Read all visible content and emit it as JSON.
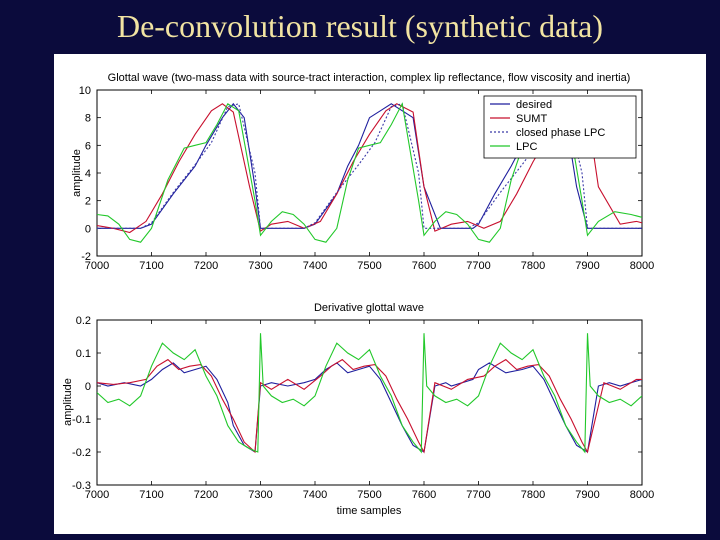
{
  "slide": {
    "title": "De-convolution result (synthetic data)"
  },
  "chart_data": [
    {
      "type": "line",
      "title": "Glottal wave (two-mass data with source-tract interaction, complex lip reflectance, flow viscosity and inertia)",
      "xlabel": "",
      "ylabel": "amplitude",
      "xlim": [
        7000,
        8000
      ],
      "ylim": [
        -2,
        10
      ],
      "x_ticks": [
        "7000",
        "7100",
        "7200",
        "7300",
        "7400",
        "7500",
        "7600",
        "7700",
        "7800",
        "7900",
        "8000"
      ],
      "y_ticks": [
        "10",
        "8",
        "6",
        "4",
        "2",
        "0",
        "-2"
      ],
      "legend": {
        "position": "top-right",
        "entries": [
          "desired",
          "SUMT",
          "closed phase LPC",
          "LPC"
        ]
      },
      "series": [
        {
          "name": "desired",
          "color": "#1f1f9e",
          "dash": "none",
          "x": [
            7000,
            7040,
            7060,
            7080,
            7100,
            7140,
            7180,
            7200,
            7230,
            7250,
            7270,
            7290,
            7300,
            7330,
            7360,
            7380,
            7400,
            7440,
            7460,
            7480,
            7500,
            7540,
            7580,
            7600,
            7630,
            7650,
            7670,
            7690,
            7700,
            7730,
            7760,
            7780,
            7800,
            7840,
            7860,
            7880,
            7900,
            7940,
            7980,
            8000
          ],
          "y": [
            0,
            0,
            0,
            0,
            0.3,
            2.5,
            4.5,
            6,
            8,
            9,
            8,
            3,
            0,
            0,
            0,
            0,
            0.3,
            2.5,
            4.5,
            6,
            8,
            9,
            8,
            3,
            0,
            0,
            0,
            0,
            0.3,
            2.5,
            4.5,
            6,
            8,
            9,
            8,
            3,
            0,
            0,
            0,
            0
          ]
        },
        {
          "name": "SUMT",
          "color": "#c8102e",
          "dash": "none",
          "x": [
            7000,
            7030,
            7060,
            7090,
            7120,
            7150,
            7180,
            7210,
            7230,
            7250,
            7280,
            7300,
            7320,
            7350,
            7380,
            7410,
            7440,
            7470,
            7500,
            7530,
            7550,
            7580,
            7600,
            7620,
            7650,
            7680,
            7710,
            7740,
            7770,
            7800,
            7830,
            7850,
            7880,
            7900,
            7920,
            7960,
            7990,
            8000
          ],
          "y": [
            0.2,
            0,
            -0.3,
            0.5,
            2.5,
            4.8,
            6.8,
            8.5,
            9,
            8.4,
            3,
            -0.2,
            0.3,
            0.5,
            0,
            0.5,
            2.5,
            4.8,
            6.8,
            8.5,
            9,
            8.4,
            3,
            -0.2,
            0.3,
            0.5,
            0,
            0.5,
            2.5,
            4.8,
            6.8,
            8.5,
            9,
            8.4,
            3,
            0.3,
            0.5,
            0.4
          ]
        },
        {
          "name": "closed phase LPC",
          "color": "#3a3aa8",
          "dash": "2,2",
          "x": [
            7000,
            7050,
            7080,
            7100,
            7140,
            7180,
            7210,
            7240,
            7260,
            7290,
            7300,
            7350,
            7380,
            7400,
            7440,
            7480,
            7510,
            7540,
            7560,
            7590,
            7600,
            7650,
            7680,
            7700,
            7740,
            7780,
            7810,
            7840,
            7860,
            7890,
            7900,
            7950,
            8000
          ],
          "y": [
            0,
            0,
            0,
            0.4,
            2.6,
            4.6,
            6.2,
            8.8,
            9,
            4,
            0,
            0,
            0,
            0.4,
            2.6,
            4.6,
            6.2,
            8.8,
            9,
            4,
            0,
            0,
            0,
            0.4,
            2.6,
            4.6,
            6.2,
            8.8,
            9,
            4,
            0,
            0,
            0
          ]
        },
        {
          "name": "LPC",
          "color": "#22c82a",
          "dash": "none",
          "x": [
            7000,
            7020,
            7040,
            7060,
            7080,
            7100,
            7130,
            7160,
            7180,
            7200,
            7220,
            7240,
            7260,
            7290,
            7300,
            7320,
            7340,
            7360,
            7380,
            7400,
            7420,
            7440,
            7460,
            7480,
            7500,
            7520,
            7540,
            7560,
            7590,
            7600,
            7620,
            7640,
            7660,
            7680,
            7700,
            7720,
            7740,
            7760,
            7780,
            7800,
            7820,
            7840,
            7860,
            7890,
            7900,
            7920,
            7950,
            7980,
            8000
          ],
          "y": [
            1,
            0.9,
            0.3,
            -0.8,
            -1,
            0,
            3.5,
            5.8,
            6,
            6.2,
            7.5,
            9,
            8.5,
            2,
            -0.5,
            0.5,
            1.2,
            1,
            0.3,
            -0.8,
            -1,
            0,
            3.5,
            5.8,
            6,
            6.2,
            7.5,
            9,
            2,
            -0.5,
            0.5,
            1.2,
            1,
            0.3,
            -0.8,
            -1,
            0,
            3.5,
            5.8,
            6,
            6.2,
            7.5,
            9,
            2,
            -0.5,
            0.5,
            1.2,
            1,
            0.8
          ]
        }
      ]
    },
    {
      "type": "line",
      "title": "Derivative glottal wave",
      "xlabel": "time samples",
      "ylabel": "amplitude",
      "xlim": [
        7000,
        8000
      ],
      "ylim": [
        -0.3,
        0.2
      ],
      "x_ticks": [
        "7000",
        "7100",
        "7200",
        "7300",
        "7400",
        "7500",
        "7600",
        "7700",
        "7800",
        "7900",
        "8000"
      ],
      "y_ticks": [
        "0.2",
        "0.1",
        "0",
        "-0.1",
        "-0.2",
        "-0.3"
      ],
      "series": [
        {
          "name": "desired",
          "color": "#1f1f9e",
          "dash": "none",
          "x": [
            7000,
            7020,
            7050,
            7080,
            7100,
            7120,
            7140,
            7160,
            7180,
            7200,
            7220,
            7240,
            7250,
            7270,
            7290,
            7300,
            7320,
            7350,
            7380,
            7400,
            7420,
            7440,
            7460,
            7480,
            7500,
            7520,
            7540,
            7560,
            7580,
            7600,
            7620,
            7640,
            7650,
            7670,
            7690,
            7700,
            7720,
            7750,
            7780,
            7800,
            7820,
            7840,
            7860,
            7880,
            7900,
            7920,
            7940,
            7960,
            7980,
            8000
          ],
          "y": [
            0.01,
            0,
            0.01,
            0,
            0.02,
            0.05,
            0.07,
            0.04,
            0.05,
            0.06,
            0.02,
            -0.05,
            -0.12,
            -0.18,
            -0.2,
            0,
            0.01,
            0,
            0.01,
            0.02,
            0.05,
            0.07,
            0.04,
            0.05,
            0.06,
            0.02,
            -0.05,
            -0.12,
            -0.18,
            -0.2,
            0,
            0.01,
            0,
            0.01,
            0.02,
            0.05,
            0.07,
            0.04,
            0.05,
            0.06,
            0.02,
            -0.05,
            -0.12,
            -0.18,
            -0.2,
            0,
            0.01,
            0,
            0.01,
            0.02
          ]
        },
        {
          "name": "SUMT",
          "color": "#c8102e",
          "dash": "none",
          "x": [
            7000,
            7030,
            7060,
            7090,
            7110,
            7130,
            7150,
            7170,
            7190,
            7210,
            7230,
            7250,
            7270,
            7290,
            7300,
            7320,
            7350,
            7380,
            7410,
            7430,
            7450,
            7470,
            7490,
            7510,
            7530,
            7550,
            7570,
            7590,
            7600,
            7620,
            7650,
            7680,
            7710,
            7730,
            7750,
            7770,
            7790,
            7810,
            7830,
            7850,
            7870,
            7890,
            7900,
            7930,
            7960,
            7990,
            8000
          ],
          "y": [
            0.01,
            0.005,
            0.01,
            0.02,
            0.06,
            0.08,
            0.05,
            0.06,
            0.065,
            0.03,
            -0.04,
            -0.1,
            -0.17,
            -0.2,
            0.01,
            -0.01,
            0.02,
            -0.01,
            0.03,
            0.06,
            0.08,
            0.05,
            0.06,
            0.065,
            0.03,
            -0.04,
            -0.1,
            -0.17,
            -0.2,
            0.01,
            -0.01,
            0.02,
            0.03,
            0.06,
            0.08,
            0.05,
            0.06,
            0.065,
            0.03,
            -0.04,
            -0.1,
            -0.17,
            -0.2,
            0.01,
            -0.01,
            0.02,
            0.02
          ]
        },
        {
          "name": "LPC",
          "color": "#22c82a",
          "dash": "none",
          "x": [
            7000,
            7020,
            7040,
            7060,
            7080,
            7100,
            7120,
            7140,
            7160,
            7180,
            7200,
            7220,
            7240,
            7260,
            7280,
            7295,
            7300,
            7305,
            7320,
            7340,
            7360,
            7380,
            7400,
            7420,
            7440,
            7460,
            7480,
            7500,
            7520,
            7540,
            7560,
            7580,
            7595,
            7600,
            7605,
            7620,
            7640,
            7660,
            7680,
            7700,
            7720,
            7740,
            7760,
            7780,
            7800,
            7820,
            7840,
            7860,
            7880,
            7895,
            7900,
            7905,
            7920,
            7940,
            7960,
            7980,
            8000
          ],
          "y": [
            -0.02,
            -0.05,
            -0.04,
            -0.06,
            -0.03,
            0.06,
            0.13,
            0.1,
            0.08,
            0.11,
            0.03,
            -0.03,
            -0.12,
            -0.17,
            -0.19,
            -0.2,
            0.16,
            0,
            -0.03,
            -0.05,
            -0.04,
            -0.06,
            -0.03,
            0.06,
            0.13,
            0.1,
            0.08,
            0.11,
            0.03,
            -0.03,
            -0.12,
            -0.17,
            -0.2,
            0.16,
            0,
            -0.03,
            -0.05,
            -0.04,
            -0.06,
            -0.03,
            0.06,
            0.13,
            0.1,
            0.08,
            0.11,
            0.03,
            -0.03,
            -0.12,
            -0.17,
            -0.2,
            0.16,
            0,
            -0.03,
            -0.05,
            -0.04,
            -0.06,
            -0.03
          ]
        }
      ]
    }
  ]
}
